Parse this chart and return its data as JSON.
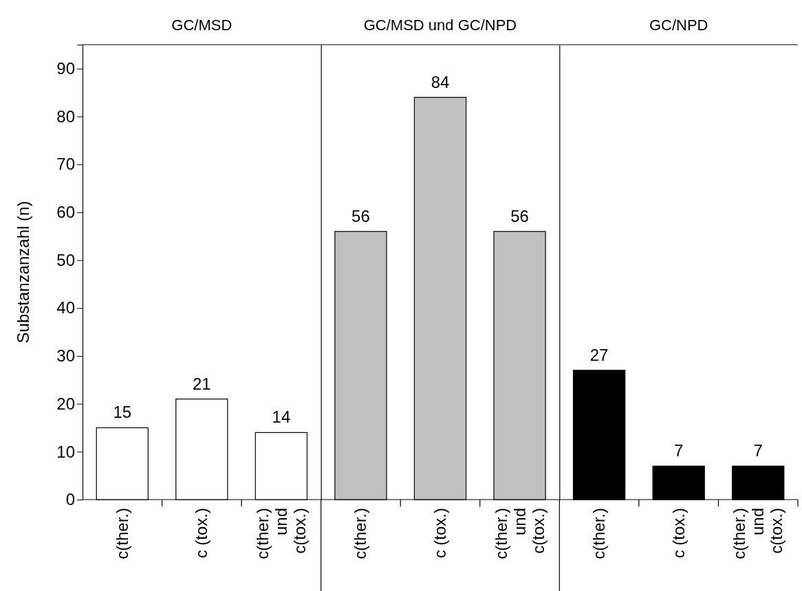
{
  "chart_data": [
    {
      "type": "bar",
      "title": "GC/MSD",
      "ylabel": "Substanzanzahl (n)",
      "categories": [
        "c(ther.)",
        "c (tox.)",
        "c(ther.) und c(tox.)"
      ],
      "values": [
        15,
        21,
        14
      ],
      "color": "#ffffff",
      "ylim": [
        0,
        95
      ],
      "yticks": [
        0,
        10,
        20,
        30,
        40,
        50,
        60,
        70,
        80,
        90
      ],
      "data_labels": true
    },
    {
      "type": "bar",
      "title": "GC/MSD und GC/NPD",
      "categories": [
        "c(ther.)",
        "c (tox.)",
        "c(ther.) und c(tox.)"
      ],
      "values": [
        56,
        84,
        56
      ],
      "color": "#c0c0c0",
      "ylim": [
        0,
        95
      ],
      "yticks": [
        0,
        10,
        20,
        30,
        40,
        50,
        60,
        70,
        80,
        90
      ],
      "tick_labels": "x",
      "data_labels": true
    },
    {
      "type": "bar",
      "title": "GC/NPD",
      "categories": [
        "c(ther.)",
        "c (tox.)",
        "c(ther.) und c(tox.)"
      ],
      "values": [
        27,
        7,
        7
      ],
      "color": "#000000",
      "ylim": [
        0,
        95
      ],
      "yticks": [
        0,
        10,
        20,
        30,
        40,
        50,
        60,
        70,
        80,
        90
      ],
      "tick_labels": "x",
      "data_labels": true
    }
  ]
}
